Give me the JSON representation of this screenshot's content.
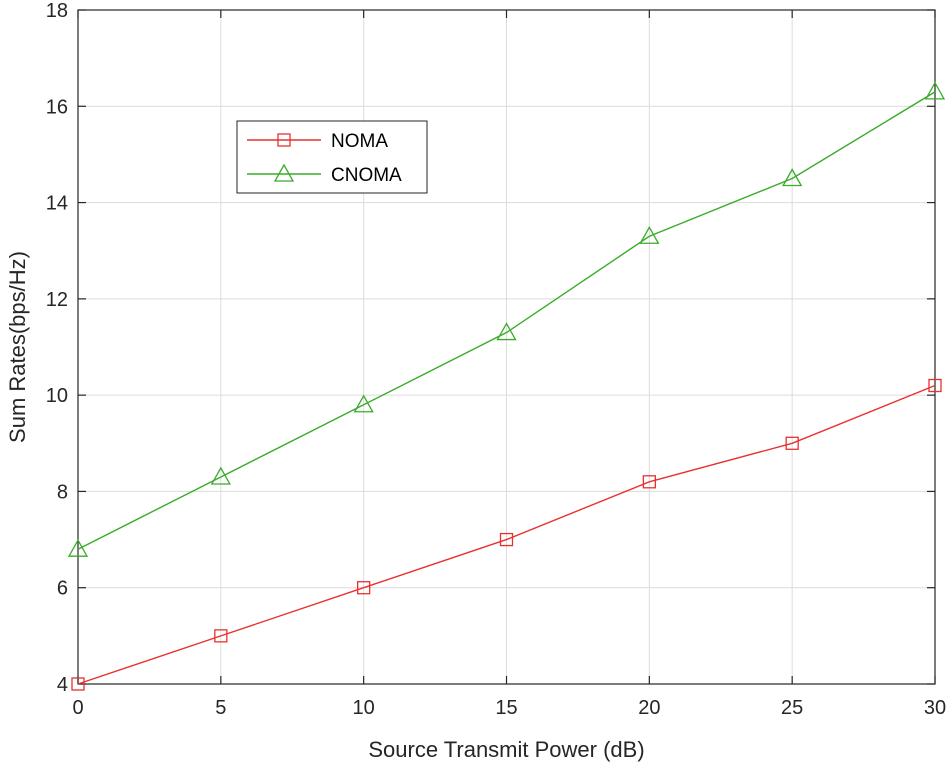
{
  "chart_data": {
    "type": "line",
    "title": "",
    "xlabel": "Source Transmit Power (dB)",
    "ylabel": "Sum Rates(bps/Hz)",
    "xlim": [
      0,
      30
    ],
    "ylim": [
      4,
      18
    ],
    "xticks": [
      0,
      5,
      10,
      15,
      20,
      25,
      30
    ],
    "yticks": [
      4,
      6,
      8,
      10,
      12,
      14,
      16,
      18
    ],
    "grid": true,
    "legend_position": "top-left",
    "x": [
      0,
      5,
      10,
      15,
      20,
      25,
      30
    ],
    "series": [
      {
        "name": "NOMA",
        "values": [
          4.0,
          5.0,
          6.0,
          7.0,
          8.2,
          9.0,
          10.2
        ],
        "color": "#e8312f",
        "marker": "square"
      },
      {
        "name": "CNOMA",
        "values": [
          6.8,
          8.3,
          9.8,
          11.3,
          13.3,
          14.5,
          16.3
        ],
        "color": "#3aab2a",
        "marker": "triangle"
      }
    ]
  }
}
